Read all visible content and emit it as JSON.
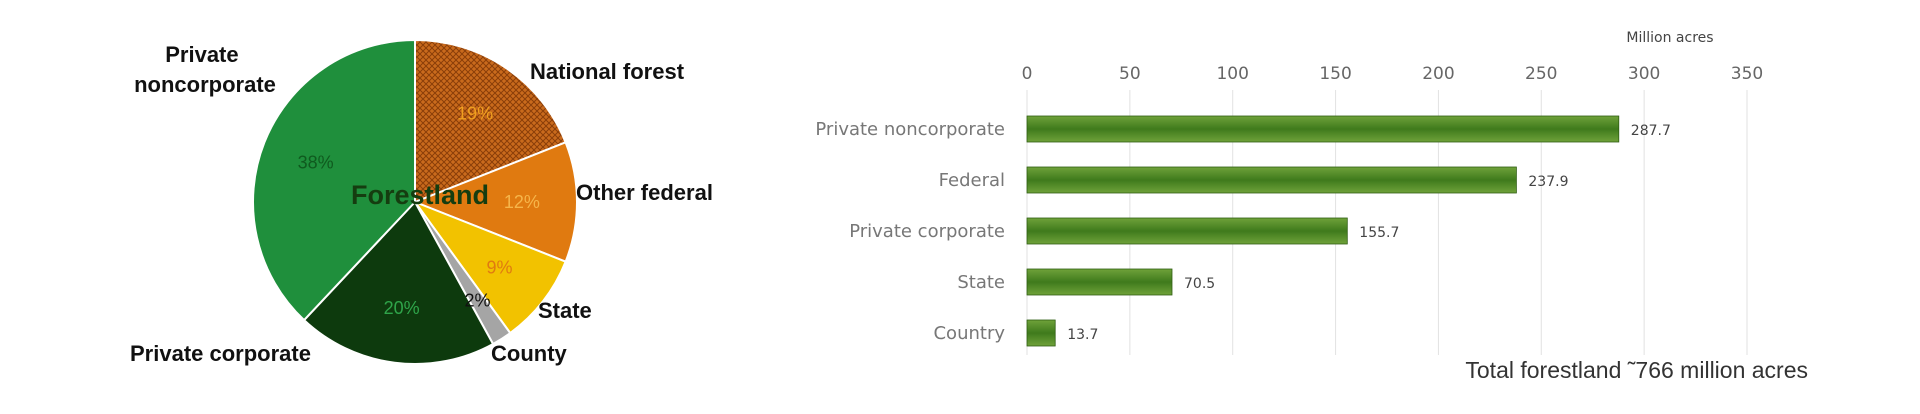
{
  "chart_data": [
    {
      "type": "pie",
      "center_label": "Forestland",
      "slices": [
        {
          "label": "National forest",
          "pct_label": "19%",
          "value": 19,
          "color": "#c96a1c",
          "pct_color": "#f0a020"
        },
        {
          "label": "Other federal",
          "pct_label": "12%",
          "value": 12,
          "color": "#e07a10",
          "pct_color": "#f6b54a"
        },
        {
          "label": "State",
          "pct_label": "9%",
          "value": 9,
          "color": "#f2c200",
          "pct_color": "#e07a10"
        },
        {
          "label": "County",
          "pct_label": "2%",
          "value": 2,
          "color": "#a5a5a5",
          "pct_color": "#111111"
        },
        {
          "label": "Private corporate",
          "pct_label": "20%",
          "value": 20,
          "color": "#0d3a0d",
          "pct_color": "#2fa54a"
        },
        {
          "label": "Private noncorporate",
          "pct_label": "38%",
          "value": 38,
          "color": "#1f8f3c",
          "pct_color": "#0f5a1e"
        }
      ]
    },
    {
      "type": "bar",
      "orientation": "horizontal",
      "unit_label": "Million acres",
      "categories": [
        "Private noncorporate",
        "Federal",
        "Private corporate",
        "State",
        "Country"
      ],
      "values": [
        287.7,
        237.9,
        155.7,
        70.5,
        13.7
      ],
      "value_labels": [
        "287.7",
        "237.9",
        "155.7",
        "70.5",
        "13.7"
      ],
      "xlim": [
        0,
        350
      ],
      "ticks": [
        "0",
        "50",
        "100",
        "150",
        "200",
        "250",
        "300",
        "350"
      ],
      "grid": true,
      "bar_color": "#3f7a1c",
      "footnote": "Total forestland ˜766 million acres"
    }
  ]
}
